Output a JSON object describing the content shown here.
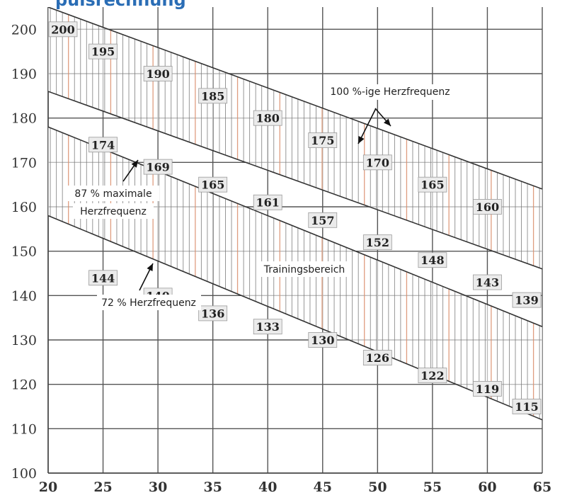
{
  "header": {
    "title_fragment": "pulsrechnung"
  },
  "chart_data": {
    "type": "area",
    "title": "",
    "xlabel": "",
    "ylabel": "",
    "xlim": [
      20,
      65
    ],
    "ylim": [
      100,
      205
    ],
    "grid": true,
    "x_ticks": [
      20,
      25,
      30,
      35,
      40,
      45,
      50,
      55,
      60,
      65
    ],
    "y_ticks": [
      100,
      110,
      120,
      130,
      140,
      150,
      160,
      170,
      180,
      190,
      200
    ],
    "bands": [
      {
        "name": "100 %-ige Herzfrequenz",
        "upper": [
          {
            "x": 20,
            "y": 205
          },
          {
            "x": 65,
            "y": 164
          }
        ],
        "lower": [
          {
            "x": 20,
            "y": 186
          },
          {
            "x": 65,
            "y": 146
          }
        ]
      },
      {
        "name": "Trainingsbereich",
        "upper": [
          {
            "x": 20,
            "y": 178
          },
          {
            "x": 65,
            "y": 133
          }
        ],
        "lower": [
          {
            "x": 20,
            "y": 158
          },
          {
            "x": 65,
            "y": 112
          }
        ]
      }
    ],
    "value_labels": [
      {
        "x": 20,
        "y": 200,
        "text": "200"
      },
      {
        "x": 25,
        "y": 195,
        "text": "195"
      },
      {
        "x": 30,
        "y": 190,
        "text": "190"
      },
      {
        "x": 35,
        "y": 185,
        "text": "185"
      },
      {
        "x": 40,
        "y": 180,
        "text": "180"
      },
      {
        "x": 45,
        "y": 175,
        "text": "175"
      },
      {
        "x": 50,
        "y": 170,
        "text": "170"
      },
      {
        "x": 55,
        "y": 165,
        "text": "165"
      },
      {
        "x": 60,
        "y": 160,
        "text": "160"
      },
      {
        "x": 25,
        "y": 174,
        "text": "174"
      },
      {
        "x": 30,
        "y": 169,
        "text": "169"
      },
      {
        "x": 35,
        "y": 165,
        "text": "165"
      },
      {
        "x": 40,
        "y": 161,
        "text": "161"
      },
      {
        "x": 45,
        "y": 157,
        "text": "157"
      },
      {
        "x": 50,
        "y": 152,
        "text": "152"
      },
      {
        "x": 55,
        "y": 148,
        "text": "148"
      },
      {
        "x": 60,
        "y": 143,
        "text": "143"
      },
      {
        "x": 65,
        "y": 139,
        "text": "139"
      },
      {
        "x": 25,
        "y": 144,
        "text": "144"
      },
      {
        "x": 30,
        "y": 140,
        "text": "140"
      },
      {
        "x": 35,
        "y": 136,
        "text": "136"
      },
      {
        "x": 40,
        "y": 133,
        "text": "133"
      },
      {
        "x": 45,
        "y": 130,
        "text": "130"
      },
      {
        "x": 50,
        "y": 126,
        "text": "126"
      },
      {
        "x": 55,
        "y": 122,
        "text": "122"
      },
      {
        "x": 60,
        "y": 119,
        "text": "119"
      },
      {
        "x": 65,
        "y": 115,
        "text": "115"
      }
    ],
    "annotations": [
      {
        "text": "100 %-ige Herzfrequenz"
      },
      {
        "text": "87 % maximale"
      },
      {
        "text": "Herzfrequenz"
      },
      {
        "text": "Trainingsbereich"
      },
      {
        "text": "72 % Herzfrequenz"
      }
    ],
    "colors": {
      "grid": "#555555",
      "hatch": "#777777",
      "hatch_accent": "#d98c6a",
      "title": "#2a6db5",
      "label_box": "#ebebeb"
    }
  }
}
